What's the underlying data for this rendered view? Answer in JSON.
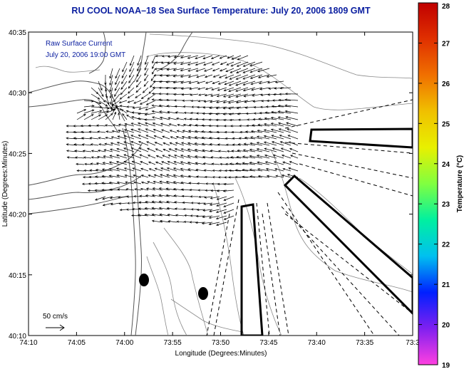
{
  "title": "RU COOL  NOAA–18  Sea Surface Temperature:  July 20, 2006 1809 GMT",
  "overlay": {
    "line1": "Raw Surface Current",
    "line2": "July 20, 2006 19:00 GMT"
  },
  "scale": {
    "label": "50 cm/s"
  },
  "axes": {
    "xlabel": "Longitude (Degrees:Minutes)",
    "ylabel": "Latitude (Degrees:Minutes)",
    "xticks": [
      "74:10",
      "74:05",
      "74:00",
      "73:55",
      "73:50",
      "73:45",
      "73:40",
      "73:35",
      "73:3"
    ],
    "yticks": [
      "40:35",
      "40:30",
      "40:25",
      "40:20",
      "40:15",
      "40:10"
    ]
  },
  "colorbar": {
    "label": "Temperature (°C)",
    "ticks": [
      "28",
      "27",
      "26",
      "25",
      "24",
      "23",
      "22",
      "21",
      "20",
      "19"
    ],
    "colors": [
      "#c00000",
      "#e03000",
      "#f07000",
      "#f0c000",
      "#e8f000",
      "#80ff40",
      "#00f0a0",
      "#00c0f0",
      "#0020ff",
      "#8020f0",
      "#ff40e0"
    ]
  },
  "map_features": [
    "coastline",
    "bathymetry-contours",
    "current-vectors",
    "shipping-lanes",
    "buoys"
  ]
}
